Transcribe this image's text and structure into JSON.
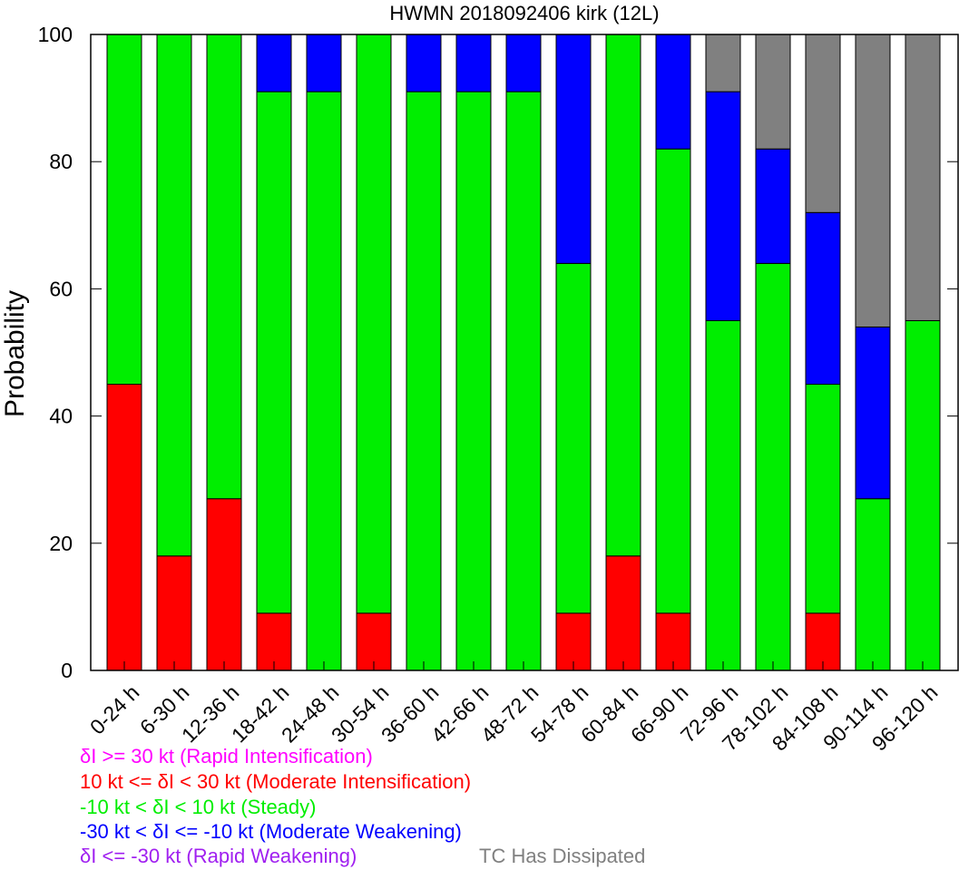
{
  "chart_data": {
    "type": "bar",
    "stacked": true,
    "title": "HWMN 2018092406 kirk (12L)",
    "xlabel": "",
    "ylabel": "Probability",
    "ylim": [
      0,
      100
    ],
    "yticks": [
      "0",
      "20",
      "40",
      "60",
      "80",
      "100"
    ],
    "grid": false,
    "categories": [
      "0-24 h",
      "6-30 h",
      "12-36 h",
      "18-42 h",
      "24-48 h",
      "30-54 h",
      "36-60 h",
      "42-66 h",
      "48-72 h",
      "54-78 h",
      "60-84 h",
      "66-90 h",
      "72-96 h",
      "78-102 h",
      "84-108 h",
      "90-114 h",
      "96-120 h"
    ],
    "series": [
      {
        "key": "ri",
        "color": "#ff00ff",
        "values": [
          0,
          0,
          0,
          0,
          0,
          0,
          0,
          0,
          0,
          0,
          0,
          0,
          0,
          0,
          0,
          0,
          0
        ]
      },
      {
        "key": "mi",
        "color": "#ff0000",
        "values": [
          45,
          18,
          27,
          9,
          0,
          9,
          0,
          0,
          0,
          9,
          18,
          9,
          0,
          0,
          9,
          0,
          0
        ]
      },
      {
        "key": "steady",
        "color": "#00ee00",
        "values": [
          55,
          82,
          73,
          82,
          91,
          91,
          91,
          91,
          91,
          55,
          82,
          73,
          55,
          64,
          36,
          27,
          55
        ]
      },
      {
        "key": "mw",
        "color": "#0000ff",
        "values": [
          0,
          0,
          0,
          9,
          9,
          0,
          9,
          9,
          9,
          36,
          0,
          18,
          36,
          18,
          27,
          27,
          0
        ]
      },
      {
        "key": "rw",
        "color": "#a020f0",
        "values": [
          0,
          0,
          0,
          0,
          0,
          0,
          0,
          0,
          0,
          0,
          0,
          0,
          0,
          0,
          0,
          0,
          0
        ]
      },
      {
        "key": "dissipated",
        "color": "#808080",
        "values": [
          0,
          0,
          0,
          0,
          0,
          0,
          0,
          0,
          0,
          0,
          0,
          0,
          9,
          18,
          28,
          46,
          45
        ]
      }
    ],
    "legend": {
      "placement": "bottom-left",
      "entries": [
        {
          "text": "δI >= 30 kt (Rapid Intensification)",
          "color": "#ff00ff"
        },
        {
          "text": "10 kt <= δI < 30 kt (Moderate Intensification)",
          "color": "#ff0000"
        },
        {
          "text": "-10 kt < δI < 10 kt (Steady)",
          "color": "#00ee00"
        },
        {
          "text": "-30 kt < δI <= -10 kt (Moderate Weakening)",
          "color": "#0000ff"
        },
        {
          "text": "δI <= -30 kt (Rapid Weakening)",
          "color": "#a020f0"
        },
        {
          "text": "TC Has Dissipated",
          "color": "#808080"
        }
      ]
    }
  }
}
